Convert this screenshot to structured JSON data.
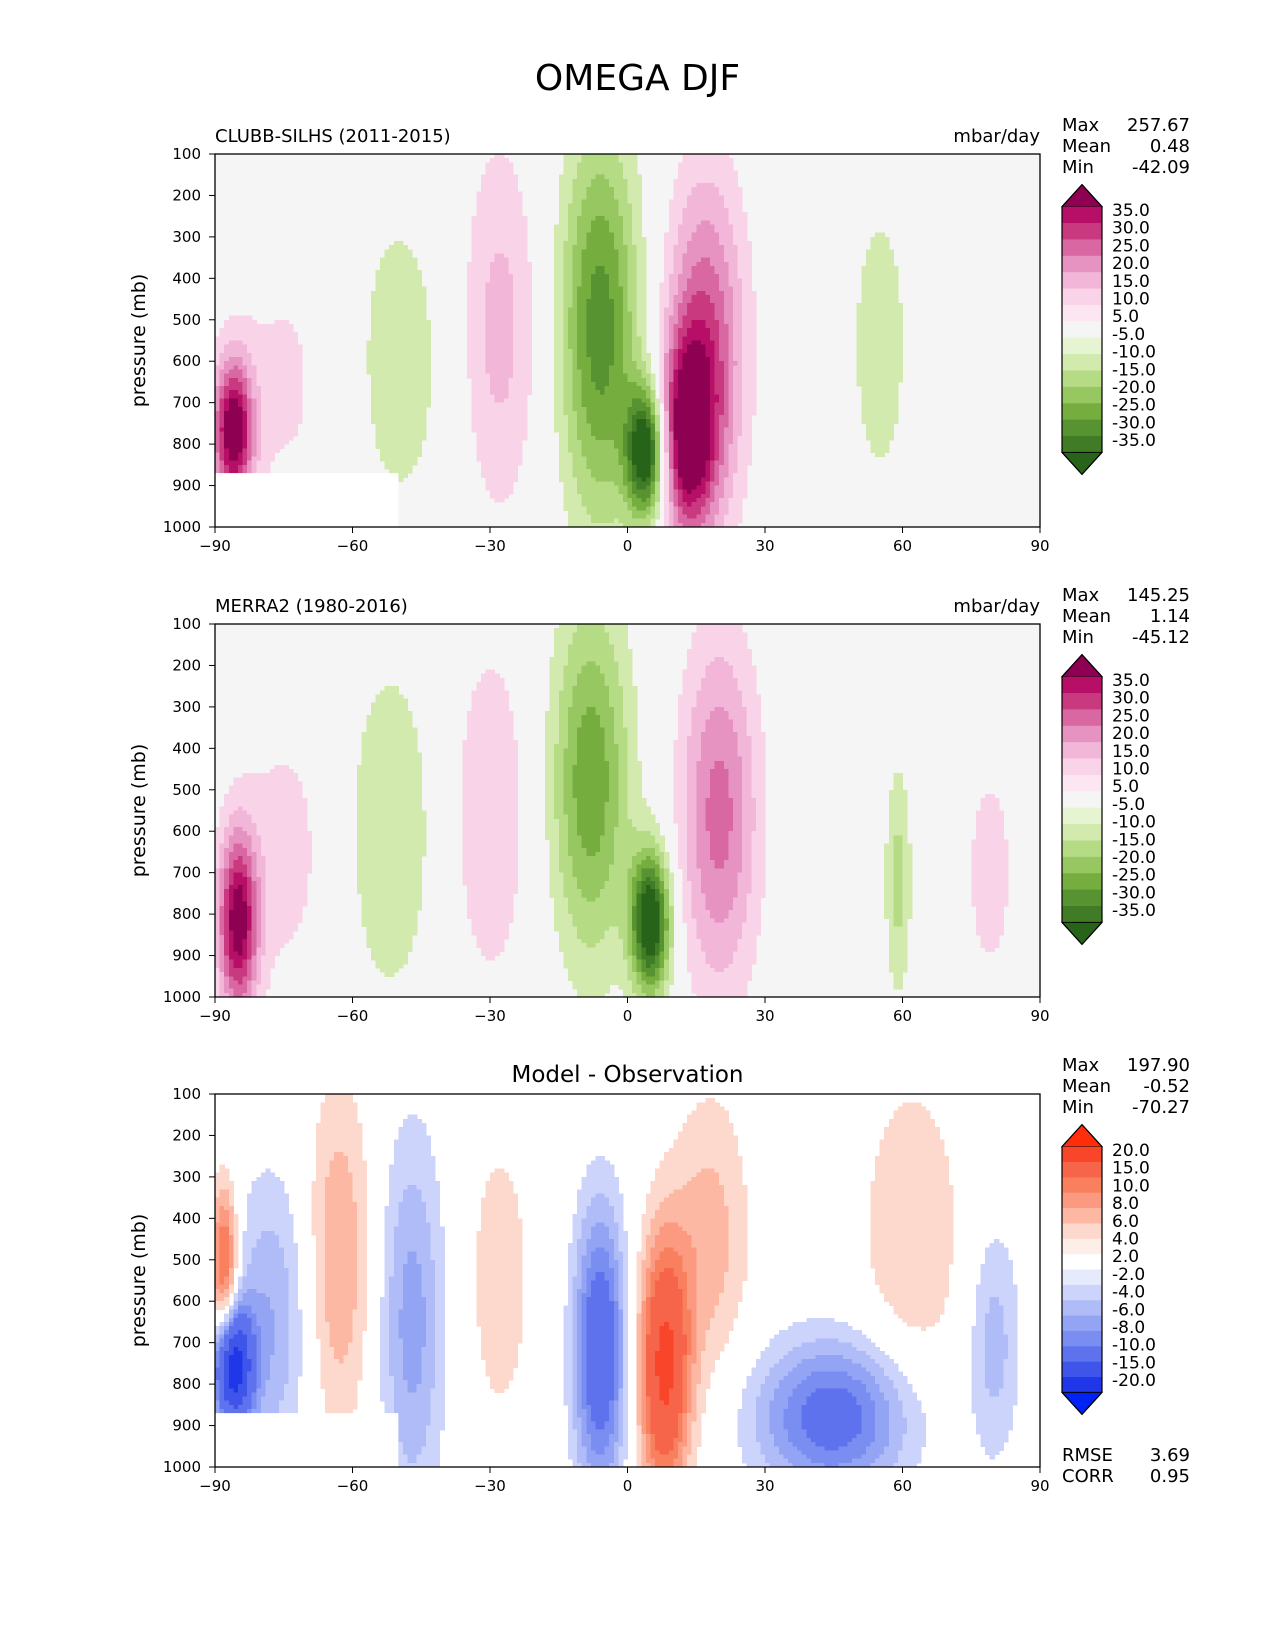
{
  "page_title": "OMEGA DJF",
  "chart_data": [
    {
      "type": "contour",
      "title": "",
      "subtitle_left": "CLUBB-SILHS (2011-2015)",
      "subtitle_right": "mbar/day",
      "xlabel": "",
      "ylabel": "pressure (mb)",
      "xlim": [
        -90,
        90
      ],
      "ylim": [
        1000,
        100
      ],
      "x_ticks": [
        "−90",
        "−60",
        "−30",
        "0",
        "30",
        "60",
        "90"
      ],
      "y_ticks": [
        "100",
        "200",
        "300",
        "400",
        "500",
        "600",
        "700",
        "800",
        "900",
        "1000"
      ],
      "stats": [
        {
          "label": "Max",
          "value": "257.67"
        },
        {
          "label": "Mean",
          "value": "0.48"
        },
        {
          "label": "Min",
          "value": "-42.09"
        }
      ],
      "colorbar": {
        "labels": [
          "35.0",
          "30.0",
          "25.0",
          "20.0",
          "15.0",
          "10.0",
          "5.0",
          "-5.0",
          "-10.0",
          "-15.0",
          "-20.0",
          "-25.0",
          "-30.0",
          "-35.0"
        ],
        "colors": [
          "#8e0152",
          "#b70f67",
          "#c8397f",
          "#d967a1",
          "#e693c2",
          "#f2b6d9",
          "#f9d3e8",
          "#fbe6f1",
          "#f5f5f5",
          "#e6f4d1",
          "#d3eaaf",
          "#b6db85",
          "#96c760",
          "#76ad3f",
          "#589331",
          "#407c25",
          "#276419"
        ]
      },
      "features": [
        {
          "lat": -86,
          "p": 770,
          "sx": 3,
          "sy": 120,
          "value": 40
        },
        {
          "lat": -75,
          "p": 650,
          "sx": 9,
          "sy": 260,
          "value": 6
        },
        {
          "lat": -50,
          "p": 600,
          "sx": 8,
          "sy": 300,
          "value": -8
        },
        {
          "lat": -28,
          "p": 520,
          "sx": 6,
          "sy": 320,
          "value": 12
        },
        {
          "lat": -6,
          "p": 520,
          "sx": 6,
          "sy": 330,
          "value": -28
        },
        {
          "lat": 4,
          "p": 820,
          "sx": 3,
          "sy": 110,
          "value": -42
        },
        {
          "lat": 17,
          "p": 580,
          "sx": 6,
          "sy": 300,
          "value": 26
        },
        {
          "lat": 13,
          "p": 780,
          "sx": 4,
          "sy": 160,
          "value": 34
        },
        {
          "lat": 55,
          "p": 560,
          "sx": 5,
          "sy": 280,
          "value": -8
        },
        {
          "lat": 78,
          "p": 620,
          "sx": 6,
          "sy": 240,
          "value": 5
        }
      ],
      "masked": [
        {
          "lat_from": -90,
          "lat_to": -50,
          "p_from": 870,
          "p_to": 1000
        }
      ]
    },
    {
      "type": "contour",
      "title": "",
      "subtitle_left": "MERRA2 (1980-2016)",
      "subtitle_right": "mbar/day",
      "xlabel": "",
      "ylabel": "pressure (mb)",
      "xlim": [
        -90,
        90
      ],
      "ylim": [
        1000,
        100
      ],
      "x_ticks": [
        "−90",
        "−60",
        "−30",
        "0",
        "30",
        "60",
        "90"
      ],
      "y_ticks": [
        "100",
        "200",
        "300",
        "400",
        "500",
        "600",
        "700",
        "800",
        "900",
        "1000"
      ],
      "stats": [
        {
          "label": "Max",
          "value": "145.25"
        },
        {
          "label": "Mean",
          "value": "1.14"
        },
        {
          "label": "Min",
          "value": "-45.12"
        }
      ],
      "colorbar": {
        "labels": [
          "35.0",
          "30.0",
          "25.0",
          "20.0",
          "15.0",
          "10.0",
          "5.0",
          "-5.0",
          "-10.0",
          "-15.0",
          "-20.0",
          "-25.0",
          "-30.0",
          "-35.0"
        ],
        "colors": [
          "#8e0152",
          "#b70f67",
          "#c8397f",
          "#d967a1",
          "#e693c2",
          "#f2b6d9",
          "#f9d3e8",
          "#fbe6f1",
          "#f5f5f5",
          "#e6f4d1",
          "#d3eaaf",
          "#b6db85",
          "#96c760",
          "#76ad3f",
          "#589331",
          "#407c25",
          "#276419"
        ]
      },
      "features": [
        {
          "lat": -85,
          "p": 820,
          "sx": 3,
          "sy": 150,
          "value": 38
        },
        {
          "lat": -75,
          "p": 650,
          "sx": 8,
          "sy": 260,
          "value": 7
        },
        {
          "lat": -52,
          "p": 600,
          "sx": 7,
          "sy": 300,
          "value": -10
        },
        {
          "lat": -30,
          "p": 560,
          "sx": 6,
          "sy": 300,
          "value": 10
        },
        {
          "lat": -8,
          "p": 480,
          "sx": 6,
          "sy": 300,
          "value": -24
        },
        {
          "lat": 5,
          "p": 820,
          "sx": 3,
          "sy": 120,
          "value": -44
        },
        {
          "lat": 20,
          "p": 560,
          "sx": 6,
          "sy": 300,
          "value": 22
        },
        {
          "lat": 59,
          "p": 720,
          "sx": 2,
          "sy": 200,
          "value": -12
        },
        {
          "lat": 79,
          "p": 700,
          "sx": 4,
          "sy": 200,
          "value": 8
        }
      ],
      "masked": []
    },
    {
      "type": "contour",
      "title": "Model - Observation",
      "subtitle_left": "",
      "subtitle_right": "",
      "xlabel": "",
      "ylabel": "pressure (mb)",
      "xlim": [
        -90,
        90
      ],
      "ylim": [
        1000,
        100
      ],
      "x_ticks": [
        "−90",
        "−60",
        "−30",
        "0",
        "30",
        "60",
        "90"
      ],
      "y_ticks": [
        "100",
        "200",
        "300",
        "400",
        "500",
        "600",
        "700",
        "800",
        "900",
        "1000"
      ],
      "stats": [
        {
          "label": "Max",
          "value": "197.90"
        },
        {
          "label": "Mean",
          "value": "-0.52"
        },
        {
          "label": "Min",
          "value": "-70.27"
        }
      ],
      "extra_stats": [
        {
          "label": "RMSE",
          "value": "3.69"
        },
        {
          "label": "CORR",
          "value": "0.95"
        }
      ],
      "colorbar": {
        "labels": [
          "20.0",
          "15.0",
          "10.0",
          "8.0",
          "6.0",
          "4.0",
          "2.0",
          "-2.0",
          "-4.0",
          "-6.0",
          "-8.0",
          "-10.0",
          "-15.0",
          "-20.0"
        ],
        "colors": [
          "#ff2d0a",
          "#f9462a",
          "#f6644a",
          "#f8805f",
          "#fb9a80",
          "#fdb8a4",
          "#fdd8cc",
          "#feeee8",
          "#ffffff",
          "#e6eafd",
          "#ccd4fb",
          "#b0bcf8",
          "#94a4f5",
          "#7a8ef2",
          "#5e72ee",
          "#3f55ea",
          "#1f37e8",
          "#0022f5"
        ]
      },
      "features": [
        {
          "lat": -88,
          "p": 520,
          "sx": 2,
          "sy": 140,
          "value": 12
        },
        {
          "lat": -86,
          "p": 760,
          "sx": 3,
          "sy": 100,
          "value": -22
        },
        {
          "lat": -78,
          "p": 650,
          "sx": 6,
          "sy": 250,
          "value": -6
        },
        {
          "lat": -63,
          "p": 500,
          "sx": 5,
          "sy": 300,
          "value": 6
        },
        {
          "lat": -47,
          "p": 650,
          "sx": 5,
          "sy": 320,
          "value": -7
        },
        {
          "lat": -28,
          "p": 550,
          "sx": 6,
          "sy": 300,
          "value": 3
        },
        {
          "lat": -6,
          "p": 720,
          "sx": 4,
          "sy": 240,
          "value": -14
        },
        {
          "lat": 8,
          "p": 760,
          "sx": 4,
          "sy": 220,
          "value": 16
        },
        {
          "lat": 18,
          "p": 450,
          "sx": 6,
          "sy": 250,
          "value": 5
        },
        {
          "lat": 45,
          "p": 880,
          "sx": 12,
          "sy": 130,
          "value": -12
        },
        {
          "lat": 62,
          "p": 450,
          "sx": 8,
          "sy": 280,
          "value": 4
        },
        {
          "lat": 80,
          "p": 700,
          "sx": 4,
          "sy": 200,
          "value": -5
        }
      ],
      "masked": [
        {
          "lat_from": -90,
          "lat_to": -50,
          "p_from": 870,
          "p_to": 1000
        }
      ]
    }
  ]
}
